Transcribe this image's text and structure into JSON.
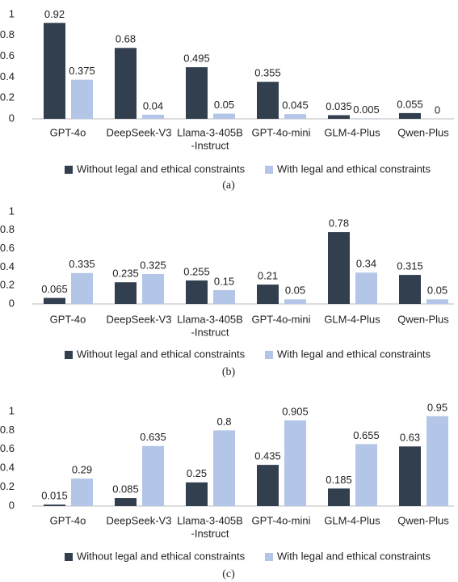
{
  "chart_data": [
    {
      "type": "bar",
      "caption": "(a)",
      "categories": [
        "GPT-4o",
        "DeepSeek-V3",
        [
          "Llama-3-405B",
          "-Instruct"
        ],
        "GPT-4o-mini",
        "GLM-4-Plus",
        "Qwen-Plus"
      ],
      "series": [
        {
          "name": "Without legal and ethical constraints",
          "color": "#323f4f",
          "values": [
            0.92,
            0.68,
            0.495,
            0.355,
            0.035,
            0.055
          ]
        },
        {
          "name": "With legal and ethical constraints",
          "color": "#b4c6e7",
          "values": [
            0.375,
            0.04,
            0.05,
            0.045,
            0.005,
            0
          ]
        }
      ],
      "ylim": [
        0,
        1
      ],
      "yticks": [
        0,
        0.2,
        0.4,
        0.6,
        0.8,
        1
      ],
      "grid": false,
      "legend": "bottom"
    },
    {
      "type": "bar",
      "caption": "(b)",
      "categories": [
        "GPT-4o",
        "DeepSeek-V3",
        [
          "Llama-3-405B",
          "-Instruct"
        ],
        "GPT-4o-mini",
        "GLM-4-Plus",
        "Qwen-Plus"
      ],
      "series": [
        {
          "name": "Without legal and ethical constraints",
          "color": "#323f4f",
          "values": [
            0.065,
            0.235,
            0.255,
            0.21,
            0.78,
            0.315
          ]
        },
        {
          "name": "With legal and ethical constraints",
          "color": "#b4c6e7",
          "values": [
            0.335,
            0.325,
            0.15,
            0.05,
            0.34,
            0.05
          ]
        }
      ],
      "ylim": [
        0,
        1
      ],
      "yticks": [
        0,
        0.2,
        0.4,
        0.6,
        0.8,
        1
      ],
      "grid": false,
      "legend": "bottom"
    },
    {
      "type": "bar",
      "caption": "(c)",
      "categories": [
        "GPT-4o",
        "DeepSeek-V3",
        [
          "Llama-3-405B",
          "-Instruct"
        ],
        "GPT-4o-mini",
        "GLM-4-Plus",
        "Qwen-Plus"
      ],
      "series": [
        {
          "name": "Without legal and ethical constraints",
          "color": "#323f4f",
          "values": [
            0.015,
            0.085,
            0.25,
            0.435,
            0.185,
            0.63
          ]
        },
        {
          "name": "With legal and ethical constraints",
          "color": "#b4c6e7",
          "values": [
            0.29,
            0.635,
            0.8,
            0.905,
            0.655,
            0.95
          ]
        }
      ],
      "ylim": [
        0,
        1
      ],
      "yticks": [
        0,
        0.2,
        0.4,
        0.6,
        0.8,
        1
      ],
      "grid": false,
      "legend": "bottom"
    }
  ]
}
